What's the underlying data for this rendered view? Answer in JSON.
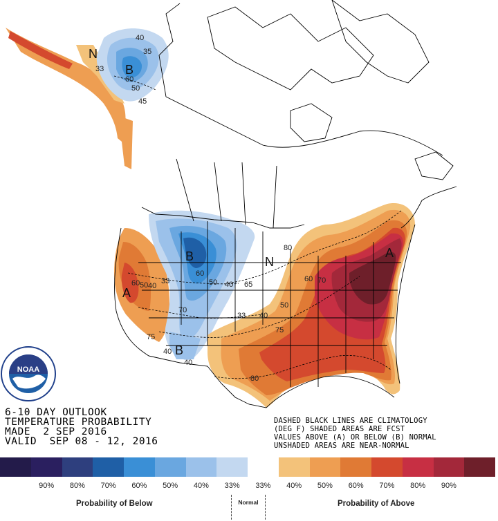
{
  "title_lines": [
    "6-10 DAY OUTLOOK",
    "TEMPERATURE PROBABILITY",
    "MADE  2 SEP 2016",
    "VALID  SEP 08 - 12, 2016"
  ],
  "notes": [
    "DASHED BLACK LINES ARE CLIMATOLOGY",
    "(DEG F) SHADED AREAS ARE FCST",
    "VALUES ABOVE (A) OR BELOW (B) NORMAL",
    "UNSHADED AREAS ARE NEAR-NORMAL"
  ],
  "legend": {
    "colors": [
      "#231b4a",
      "#2a1f5f",
      "#2e3f7e",
      "#1f5fa6",
      "#3a8fd6",
      "#6aa7e0",
      "#9bc1ea",
      "#c3d8f0",
      "#ffffff",
      "#f3c27a",
      "#ee9e52",
      "#e07a35",
      "#d4492e",
      "#c72f43",
      "#a3283a",
      "#6e1f2a"
    ],
    "labels": [
      "90%",
      "80%",
      "70%",
      "60%",
      "50%",
      "40%",
      "33%",
      "33%",
      "40%",
      "50%",
      "60%",
      "70%",
      "80%",
      "90%"
    ],
    "below_caption": "Probability of Below",
    "normal_caption": "Normal",
    "above_caption": "Probability of Above"
  },
  "map": {
    "region_letters": [
      {
        "text": "B",
        "kind": "below"
      },
      {
        "text": "B",
        "kind": "below"
      },
      {
        "text": "B",
        "kind": "below"
      },
      {
        "text": "A",
        "kind": "above"
      },
      {
        "text": "A",
        "kind": "above"
      },
      {
        "text": "N",
        "kind": "normal"
      },
      {
        "text": "N",
        "kind": "normal"
      }
    ],
    "contour_labels": [
      "35",
      "40",
      "33",
      "60",
      "50",
      "45",
      "50",
      "60",
      "40",
      "33",
      "60",
      "50",
      "40",
      "65",
      "70",
      "33",
      "40",
      "60",
      "70",
      "50",
      "75",
      "80",
      "75",
      "40",
      "40",
      "80"
    ]
  },
  "logo": {
    "text": "NOAA",
    "ring_text": "NATIONAL OCEANIC AND ATMOSPHERIC ADMINISTRATION · U.S. DEPARTMENT OF COMMERCE"
  }
}
